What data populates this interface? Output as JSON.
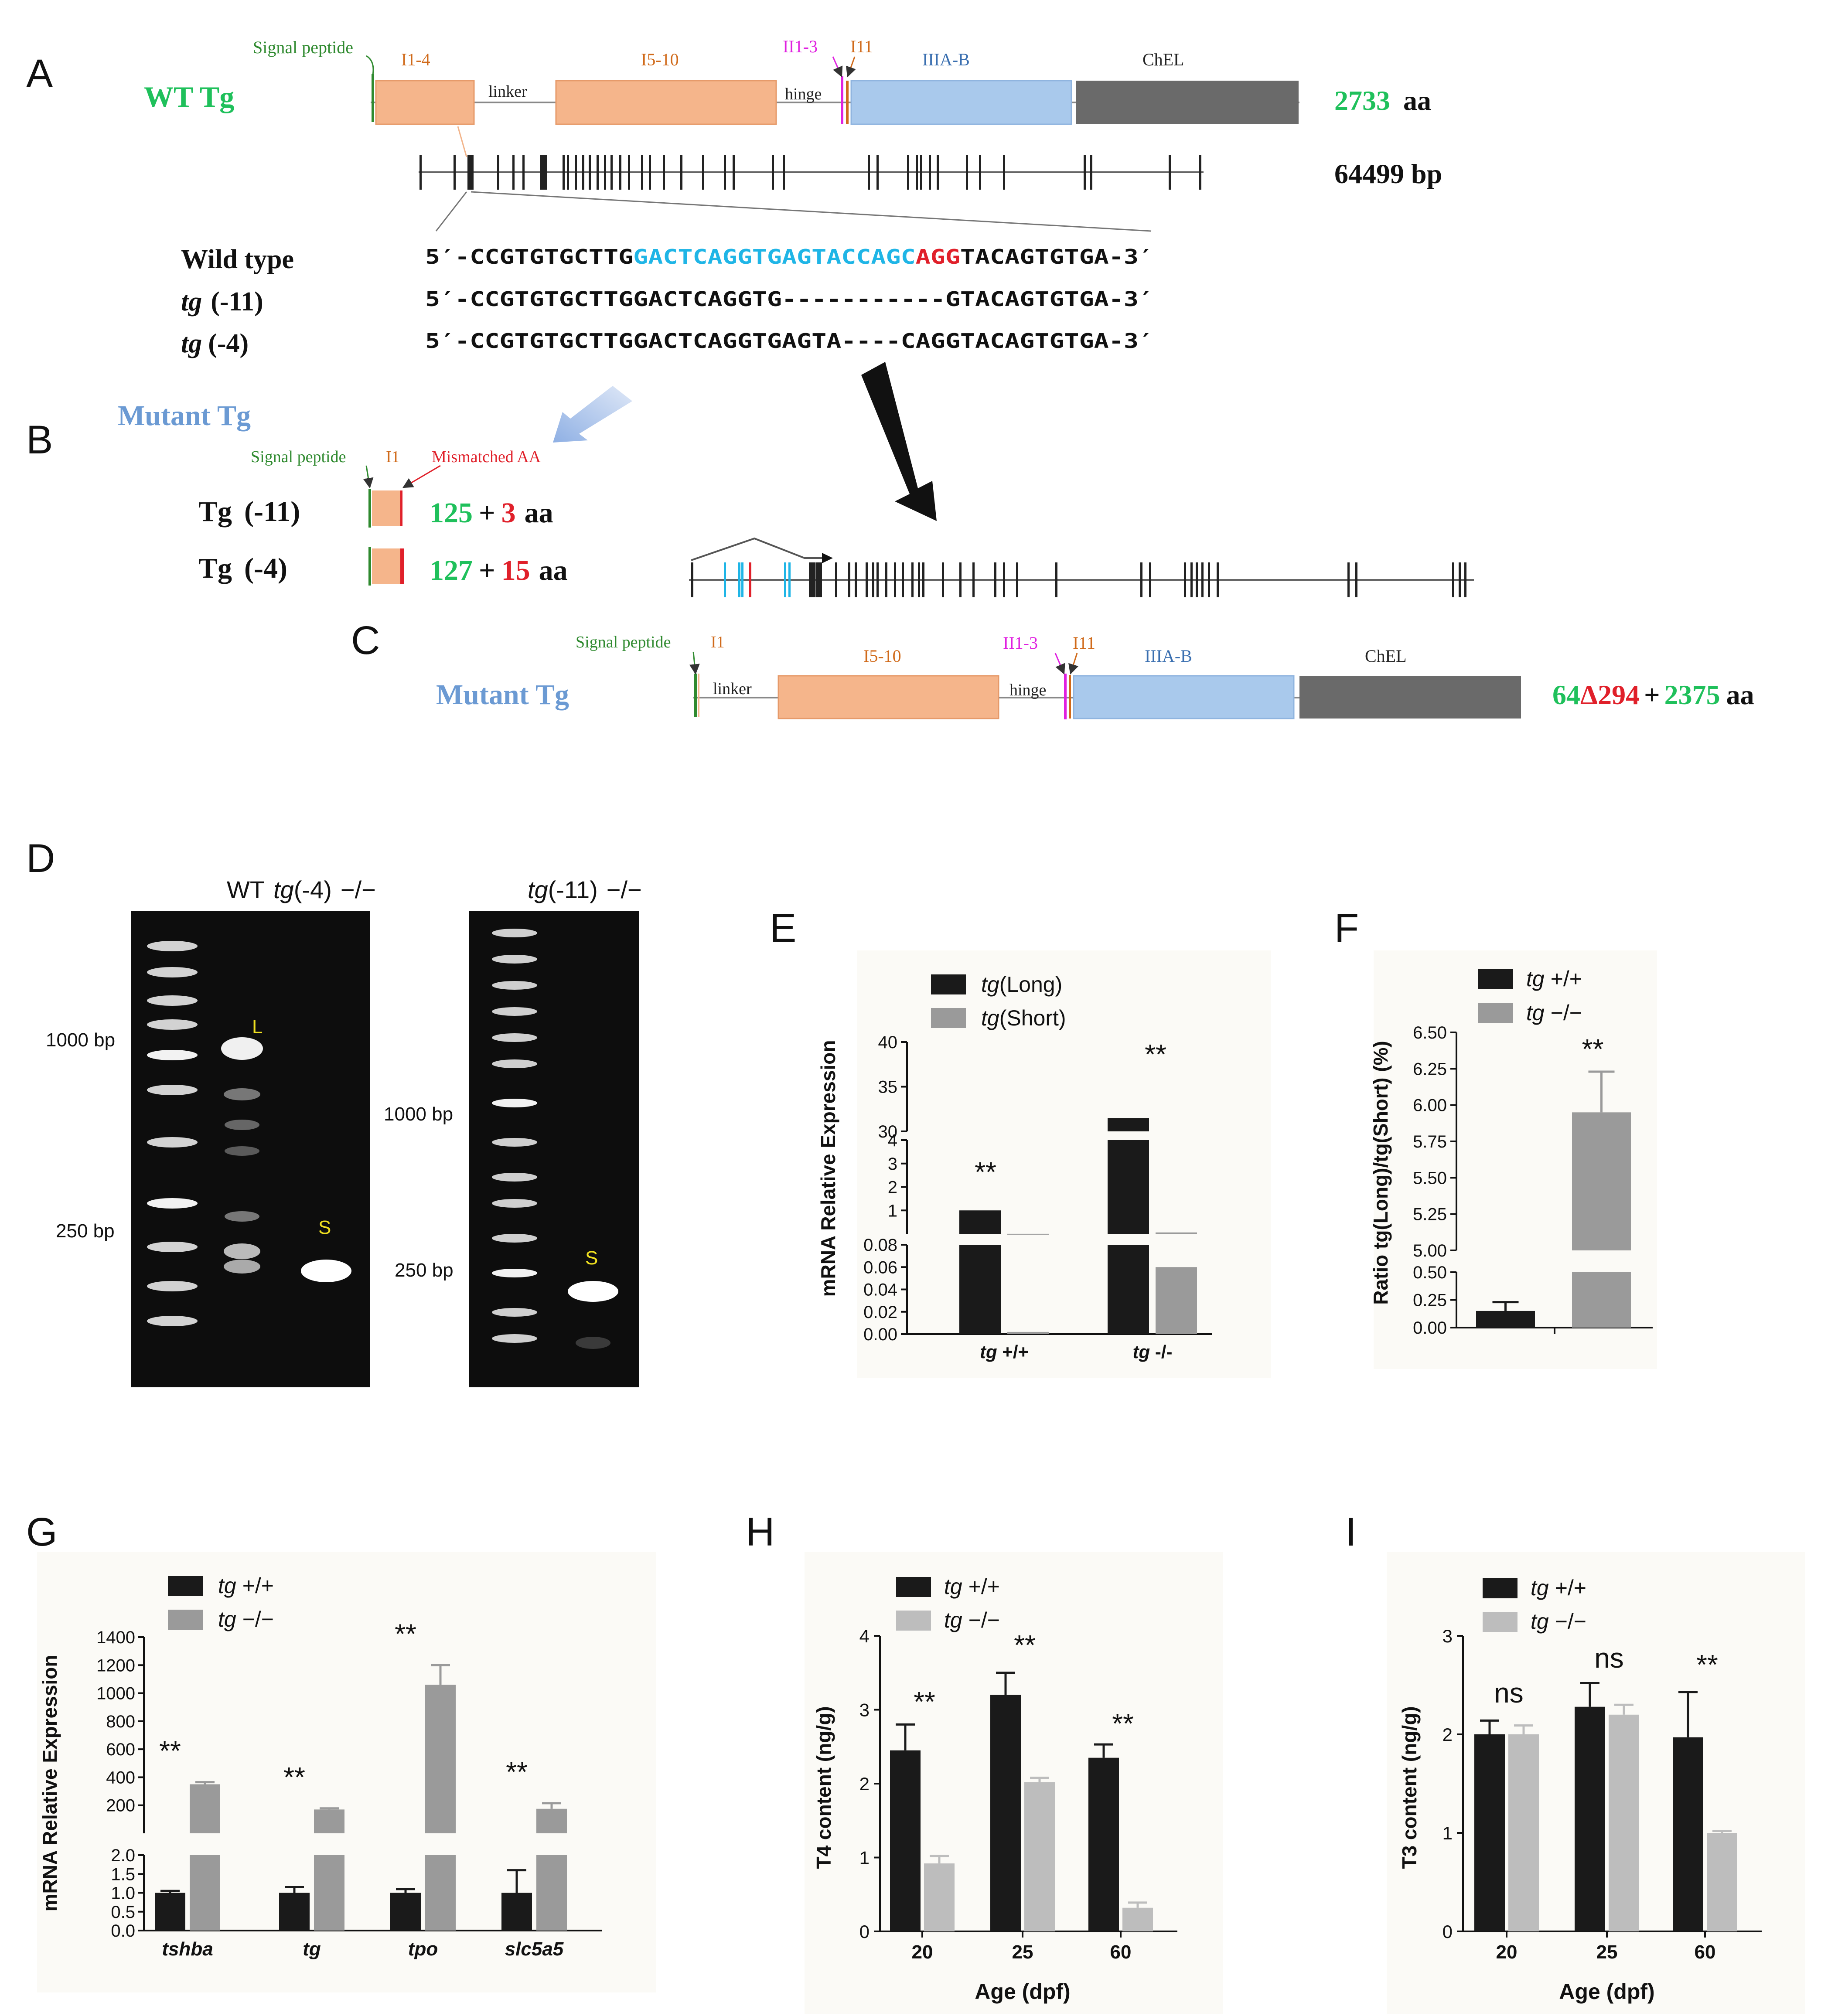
{
  "panel_letters": {
    "a": "A",
    "b": "B",
    "c": "C",
    "d": "D",
    "e": "E",
    "f": "F",
    "g": "G",
    "h": "H",
    "i": "I"
  },
  "colors": {
    "green": "#1fc05b",
    "red": "#e0202a",
    "blue_label": "#6b9ad3",
    "domain_I": "#f5b58b",
    "domain_IIIA": "#a9c9ec",
    "domain_ChEL": "#6a6a6a",
    "magenta": "#e020e0",
    "cyan": "#1fb5e6",
    "orange_text": "#d06a1a",
    "dark_bar": "#1a1a1a",
    "grey_bar": "#9a9a9a",
    "light_bar": "#bdbdbd"
  },
  "panel_a": {
    "title": "WT Tg",
    "labels": {
      "signal": "Signal peptide",
      "i14": "I1-4",
      "linker": "linker",
      "i510": "I5-10",
      "i113": "II1-3",
      "hinge": "hinge",
      "i11": "I11",
      "iiiab": "IIIA-B",
      "chel": "ChEL"
    },
    "aa_num": "2733",
    "aa_unit": "aa",
    "bp": "64499 bp",
    "seq_labels": {
      "wt": "Wild type",
      "m11_italic": "tg",
      "m11_rest": "(-11)",
      "m4_italic": "tg",
      "m4_rest": "(-4)"
    },
    "seq_wt": {
      "p1": "5′-CCGTGTGCTTG",
      "p2": "GACTCAGGTGAGTACCAGC",
      "p3": "AGG",
      "p4": "TACAGTGTGA-3′"
    },
    "seq_m11": "5′-CCGTGTGCTTGGACTCAGGTG-----------GTACAGTGTGA-3′",
    "seq_m4": "5′-CCGTGTGCTTGGACTCAGGTGAGTA----CAGGTACAGTGTGA-3′"
  },
  "panel_b": {
    "title": "Mutant Tg",
    "labels": {
      "signal": "Signal peptide",
      "i1": "I1",
      "mismatch": "Mismatched AA"
    },
    "row1": {
      "name": "Tg",
      "mut": "(-11)",
      "g": "125",
      "plus": "+",
      "r": "3",
      "unit": "aa"
    },
    "row2": {
      "name": "Tg",
      "mut": "(-4)",
      "g": "127",
      "plus": "+",
      "r": "15",
      "unit": "aa"
    }
  },
  "panel_c": {
    "title": "Mutant Tg",
    "labels": {
      "signal": "Signal peptide",
      "i1": "I1",
      "linker": "linker",
      "i510": "I5-10",
      "i113": "II1-3",
      "hinge": "hinge",
      "i11": "I11",
      "iiiab": "IIIA-B",
      "chel": "ChEL"
    },
    "aa": {
      "p1": "64",
      "p2": "Δ294",
      "p3": "+",
      "p4": "2375",
      "p5": "aa"
    }
  },
  "panel_d": {
    "gel1_header": {
      "wt": "WT",
      "tg": "tg",
      "mut": "(-4)",
      "geno": "−/−"
    },
    "gel2_header": {
      "tg": "tg",
      "mut": "(-11)",
      "geno": "−/−"
    },
    "gel1_markers": {
      "m1000": "1000 bp",
      "m250": "250 bp"
    },
    "gel2_markers": {
      "m1000": "1000 bp",
      "m250": "250 bp"
    },
    "band_labels": {
      "L": "L",
      "S": "S",
      "S2": "S"
    }
  },
  "panel_e": {
    "legend": [
      {
        "italic": "tg",
        "rest": "(Long)"
      },
      {
        "italic": "tg",
        "rest": "(Short)"
      }
    ],
    "ylabel": "mRNA Relative Expression",
    "sig": "**",
    "chart_data": {
      "type": "bar",
      "categories": [
        "tg +/+",
        "tg -/-"
      ],
      "series": [
        {
          "name": "tg(Long)",
          "values": [
            1.0,
            31.5
          ]
        },
        {
          "name": "tg(Short)",
          "values": [
            0.002,
            0.06
          ]
        }
      ],
      "ylabel": "mRNA Relative Expression",
      "broken_axis_segments": [
        [
          0,
          0.08
        ],
        [
          0,
          4
        ],
        [
          30,
          40
        ]
      ],
      "significance": [
        "**",
        "**"
      ]
    },
    "ticks_low": [
      "0.00",
      "0.02",
      "0.04",
      "0.06",
      "0.08"
    ],
    "ticks_mid": [
      "1",
      "2",
      "3",
      "4"
    ],
    "ticks_high": [
      "30",
      "35",
      "40"
    ]
  },
  "panel_f": {
    "legend": [
      {
        "italic": "tg",
        "rest": "+/+"
      },
      {
        "italic": "tg",
        "rest": "−/−"
      }
    ],
    "ylabel": "Ratio tg(Long)/tg(Short) (%)",
    "sig": "**",
    "chart_data": {
      "type": "bar",
      "categories": [
        "tg +/+",
        "tg −/−"
      ],
      "values": [
        0.15,
        5.95
      ],
      "errors": [
        0.08,
        0.28
      ],
      "ylabel": "Ratio tg(Long)/tg(Short) (%)",
      "broken_axis_segments": [
        [
          0,
          0.5
        ],
        [
          5.0,
          6.5
        ]
      ],
      "significance": [
        "**"
      ]
    },
    "ticks_low": [
      "0.00",
      "0.25",
      "0.50"
    ],
    "ticks_high": [
      "5.00",
      "5.25",
      "5.50",
      "5.75",
      "6.00",
      "6.25",
      "6.50"
    ]
  },
  "panel_g": {
    "legend": [
      {
        "italic": "tg",
        "rest": "+/+"
      },
      {
        "italic": "tg",
        "rest": "−/−"
      }
    ],
    "ylabel": "mRNA Relative Expression",
    "sig": "**",
    "chart_data": {
      "type": "bar",
      "categories": [
        "tshba",
        "tg",
        "tpo",
        "slc5a5"
      ],
      "series": [
        {
          "name": "tg +/+",
          "values": [
            1.0,
            1.0,
            1.0,
            1.0
          ],
          "errors": [
            0.05,
            0.15,
            0.1,
            0.6
          ]
        },
        {
          "name": "tg −/−",
          "values": [
            350,
            170,
            1060,
            175
          ],
          "errors": [
            15,
            8,
            140,
            40
          ]
        }
      ],
      "ylabel": "mRNA Relative Expression",
      "broken_axis_segments": [
        [
          0,
          2
        ],
        [
          0,
          1400
        ]
      ],
      "significance": [
        "**",
        "**",
        "**",
        "**"
      ]
    },
    "ticks_low": [
      "0.0",
      "0.5",
      "1.0",
      "1.5",
      "2.0"
    ],
    "ticks_high": [
      "200",
      "400",
      "600",
      "800",
      "1000",
      "1200",
      "1400"
    ]
  },
  "panel_h": {
    "legend": [
      {
        "italic": "tg",
        "rest": "+/+"
      },
      {
        "italic": "tg",
        "rest": "−/−"
      }
    ],
    "ylabel": "T4 content (ng/g)",
    "xlabel": "Age (dpf)",
    "sig": "**",
    "chart_data": {
      "type": "bar",
      "categories": [
        "20",
        "25",
        "60"
      ],
      "series": [
        {
          "name": "tg +/+",
          "values": [
            2.45,
            3.2,
            2.35
          ],
          "errors": [
            0.35,
            0.3,
            0.18
          ]
        },
        {
          "name": "tg −/−",
          "values": [
            0.92,
            2.02,
            0.32
          ],
          "errors": [
            0.1,
            0.06,
            0.07
          ]
        }
      ],
      "xlabel": "Age (dpf)",
      "ylabel": "T4 content (ng/g)",
      "ylim": [
        0,
        4
      ],
      "significance": [
        "**",
        "**",
        "**"
      ]
    },
    "ticks": [
      "0",
      "1",
      "2",
      "3",
      "4"
    ]
  },
  "panel_i": {
    "legend": [
      {
        "italic": "tg",
        "rest": "+/+"
      },
      {
        "italic": "tg",
        "rest": "−/−"
      }
    ],
    "ylabel": "T3 content (ng/g)",
    "xlabel": "Age (dpf)",
    "chart_data": {
      "type": "bar",
      "categories": [
        "20",
        "25",
        "60"
      ],
      "series": [
        {
          "name": "tg +/+",
          "values": [
            2.0,
            2.28,
            1.97
          ],
          "errors": [
            0.14,
            0.24,
            0.46
          ]
        },
        {
          "name": "tg −/−",
          "values": [
            2.0,
            2.2,
            1.0
          ],
          "errors": [
            0.09,
            0.1,
            0.02
          ]
        }
      ],
      "xlabel": "Age (dpf)",
      "ylabel": "T3 content (ng/g)",
      "ylim": [
        0,
        3
      ],
      "significance": [
        "ns",
        "ns",
        "**"
      ]
    },
    "ticks": [
      "0",
      "1",
      "2",
      "3"
    ]
  }
}
